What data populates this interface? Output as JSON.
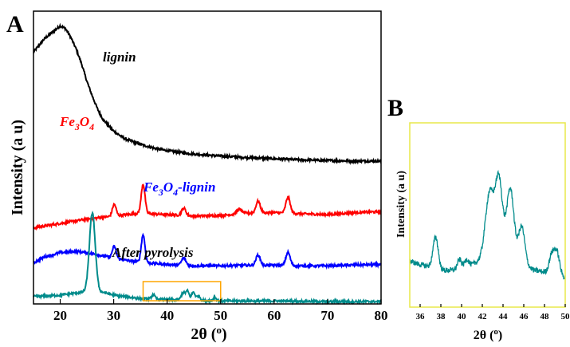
{
  "chart_data": [
    {
      "type": "line",
      "panel_label": "A",
      "xlabel_main": "2θ (",
      "xlabel_sup": "o",
      "xlabel_end": ")",
      "ylabel": "Intensity (a u)",
      "xlim": [
        15,
        80
      ],
      "xticks": [
        20,
        30,
        40,
        50,
        60,
        70,
        80
      ],
      "y_ticks_shown": false,
      "grid": false,
      "series": [
        {
          "name": "lignin",
          "color": "#000000",
          "points": [
            [
              15,
              0.86
            ],
            [
              17,
              0.905
            ],
            [
              19,
              0.935
            ],
            [
              20,
              0.95
            ],
            [
              21,
              0.94
            ],
            [
              22,
              0.91
            ],
            [
              23,
              0.87
            ],
            [
              24,
              0.82
            ],
            [
              25,
              0.76
            ],
            [
              26,
              0.71
            ],
            [
              27,
              0.665
            ],
            [
              28,
              0.63
            ],
            [
              30,
              0.59
            ],
            [
              32,
              0.565
            ],
            [
              35,
              0.545
            ],
            [
              38,
              0.53
            ],
            [
              42,
              0.518
            ],
            [
              45,
              0.512
            ],
            [
              50,
              0.505
            ],
            [
              55,
              0.5
            ],
            [
              60,
              0.496
            ],
            [
              65,
              0.492
            ],
            [
              70,
              0.49
            ],
            [
              75,
              0.488
            ],
            [
              80,
              0.488
            ]
          ],
          "peaks": []
        },
        {
          "name": "Fe3O4",
          "label_main": "Fe",
          "label_sub1": "3",
          "label_mid": "O",
          "label_sub2": "4",
          "color": "#ff0000",
          "points": [
            [
              15,
              0.26
            ],
            [
              20,
              0.275
            ],
            [
              25,
              0.29
            ],
            [
              30,
              0.3
            ],
            [
              35,
              0.31
            ],
            [
              40,
              0.305
            ],
            [
              45,
              0.3
            ],
            [
              50,
              0.302
            ],
            [
              55,
              0.31
            ],
            [
              60,
              0.312
            ],
            [
              65,
              0.308
            ],
            [
              70,
              0.305
            ],
            [
              75,
              0.312
            ],
            [
              80,
              0.315
            ]
          ],
          "peaks": [
            [
              30.1,
              0.04,
              0.35
            ],
            [
              35.5,
              0.1,
              0.35
            ],
            [
              43.1,
              0.025,
              0.4
            ],
            [
              53.5,
              0.015,
              0.5
            ],
            [
              57.0,
              0.04,
              0.4
            ],
            [
              62.6,
              0.055,
              0.4
            ]
          ]
        },
        {
          "name": "Fe3O4-lignin",
          "label_main": "Fe",
          "label_sub1": "3",
          "label_mid": "O",
          "label_sub2": "4",
          "label_end": "-lignin",
          "color": "#0000ff",
          "points": [
            [
              15,
              0.14
            ],
            [
              17,
              0.16
            ],
            [
              20,
              0.175
            ],
            [
              23,
              0.18
            ],
            [
              26,
              0.172
            ],
            [
              29,
              0.16
            ],
            [
              32,
              0.15
            ],
            [
              35,
              0.142
            ],
            [
              40,
              0.135
            ],
            [
              45,
              0.13
            ],
            [
              50,
              0.13
            ],
            [
              55,
              0.132
            ],
            [
              60,
              0.132
            ],
            [
              65,
              0.13
            ],
            [
              70,
              0.13
            ],
            [
              75,
              0.133
            ],
            [
              80,
              0.135
            ]
          ],
          "peaks": [
            [
              30.1,
              0.04,
              0.35
            ],
            [
              35.5,
              0.095,
              0.35
            ],
            [
              43.1,
              0.025,
              0.4
            ],
            [
              57.0,
              0.035,
              0.4
            ],
            [
              62.6,
              0.045,
              0.4
            ]
          ]
        },
        {
          "name": "After pyrolysis",
          "color": "#008b8b",
          "points": [
            [
              15,
              0.025
            ],
            [
              20,
              0.03
            ],
            [
              24,
              0.04
            ],
            [
              28,
              0.04
            ],
            [
              30,
              0.03
            ],
            [
              35,
              0.018
            ],
            [
              40,
              0.015
            ],
            [
              45,
              0.012
            ],
            [
              50,
              0.01
            ],
            [
              55,
              0.01
            ],
            [
              60,
              0.01
            ],
            [
              70,
              0.008
            ],
            [
              80,
              0.008
            ]
          ],
          "peaks": [
            [
              26.0,
              0.27,
              0.55
            ],
            [
              37.4,
              0.015,
              0.3
            ],
            [
              43.0,
              0.025,
              0.35
            ],
            [
              43.8,
              0.03,
              0.3
            ],
            [
              44.9,
              0.028,
              0.35
            ],
            [
              45.9,
              0.015,
              0.3
            ],
            [
              48.9,
              0.012,
              0.3
            ]
          ]
        }
      ],
      "inset_box": {
        "x": [
          35.5,
          50
        ],
        "color": "#ffa500"
      }
    },
    {
      "type": "line",
      "panel_label": "B",
      "xlabel_main": "2θ (",
      "xlabel_sup": "o",
      "xlabel_end": ")",
      "ylabel": "Intensity (a u)",
      "xlim": [
        35,
        50
      ],
      "xticks": [
        36,
        38,
        40,
        42,
        44,
        46,
        48,
        50
      ],
      "frame_color": "#e8e84a",
      "series": [
        {
          "name": "After pyrolysis (inset)",
          "color": "#008b8b",
          "points": [
            [
              35,
              0.25
            ],
            [
              36,
              0.23
            ],
            [
              37,
              0.22
            ],
            [
              38,
              0.2
            ],
            [
              39,
              0.2
            ],
            [
              40,
              0.21
            ],
            [
              41,
              0.23
            ],
            [
              42,
              0.26
            ],
            [
              43,
              0.27
            ],
            [
              44,
              0.27
            ],
            [
              45,
              0.26
            ],
            [
              46,
              0.23
            ],
            [
              47,
              0.2
            ],
            [
              48,
              0.19
            ],
            [
              49,
              0.18
            ],
            [
              50,
              0.16
            ]
          ],
          "peaks": [
            [
              37.5,
              0.17,
              0.25
            ],
            [
              39.8,
              0.05,
              0.2
            ],
            [
              40.5,
              0.04,
              0.2
            ],
            [
              42.7,
              0.35,
              0.4
            ],
            [
              43.6,
              0.42,
              0.35
            ],
            [
              44.7,
              0.38,
              0.35
            ],
            [
              45.8,
              0.2,
              0.3
            ],
            [
              48.7,
              0.1,
              0.25
            ],
            [
              49.2,
              0.12,
              0.25
            ]
          ]
        }
      ]
    }
  ]
}
